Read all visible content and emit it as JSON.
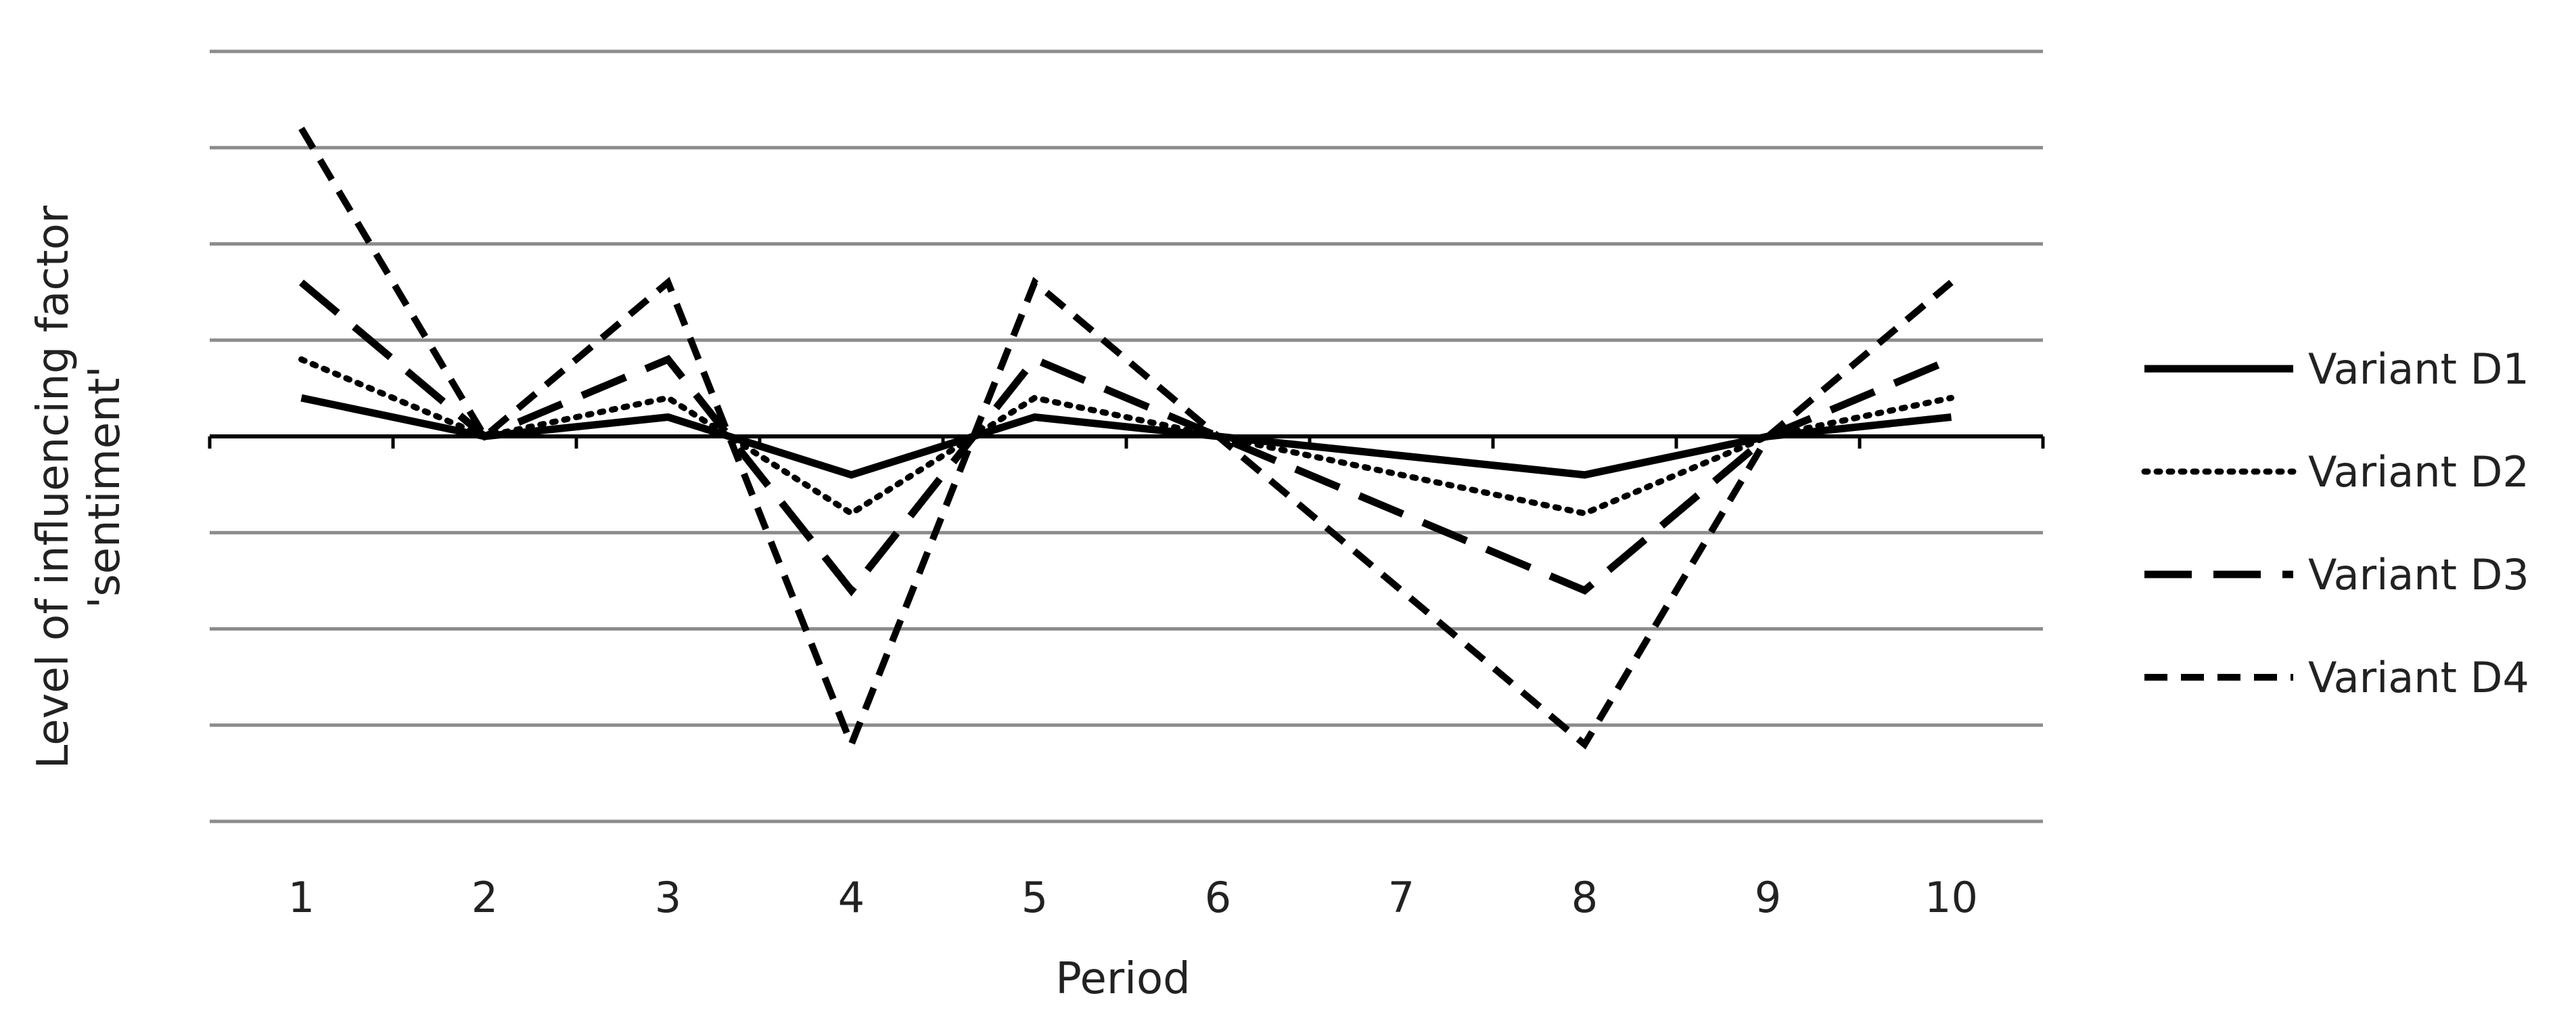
{
  "chart_data": {
    "type": "line",
    "title": "",
    "xlabel": "Period",
    "ylabel_lines": [
      "Level of influencing factor",
      "'sentiment'"
    ],
    "categories": [
      "1",
      "2",
      "3",
      "4",
      "5",
      "6",
      "7",
      "8",
      "9",
      "10"
    ],
    "ylim": [
      -4,
      4
    ],
    "grid": true,
    "legend_position": "right",
    "series": [
      {
        "name": "Variant D1",
        "style": "solid",
        "values": [
          0.4,
          0,
          0.2,
          -0.4,
          0.2,
          0,
          -0.2,
          -0.4,
          0,
          0.2
        ]
      },
      {
        "name": "Variant D2",
        "style": "dotted",
        "values": [
          0.8,
          0,
          0.4,
          -0.8,
          0.4,
          0,
          -0.4,
          -0.8,
          0,
          0.4
        ]
      },
      {
        "name": "Variant D3",
        "style": "long-dash",
        "values": [
          1.6,
          0,
          0.8,
          -1.6,
          0.8,
          0,
          -0.8,
          -1.6,
          0,
          0.8
        ]
      },
      {
        "name": "Variant D4",
        "style": "short-dash",
        "values": [
          3.2,
          0,
          1.6,
          -3.2,
          1.6,
          0,
          -1.6,
          -3.2,
          0,
          1.6
        ]
      }
    ]
  }
}
